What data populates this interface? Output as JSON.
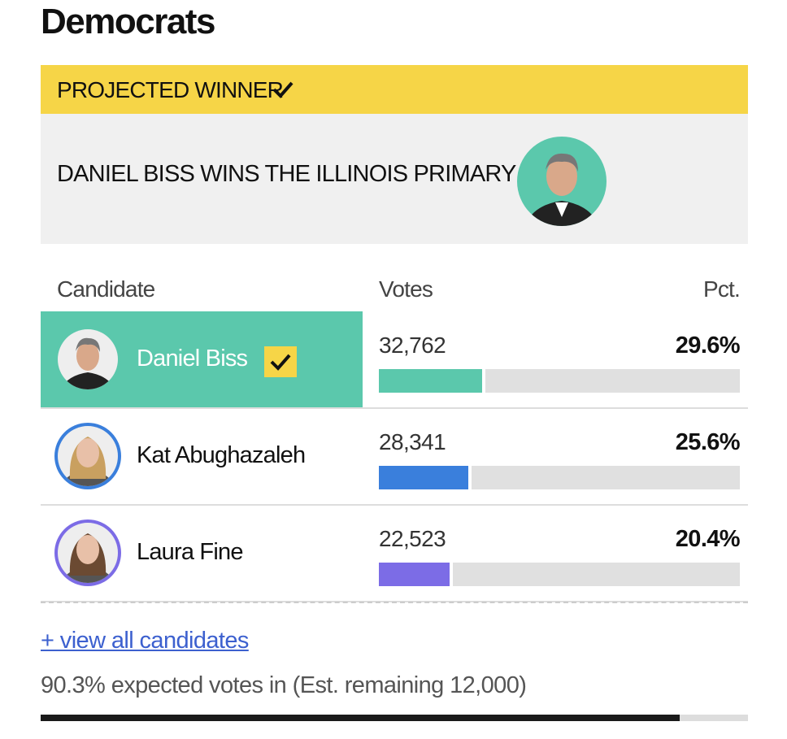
{
  "header": {
    "title": "Democrats"
  },
  "projection": {
    "label": "PROJECTED WINNER",
    "headline": "DANIEL BISS WINS THE ILLINOIS PRIMARY"
  },
  "table": {
    "columns": [
      "Candidate",
      "Votes",
      "Pct."
    ],
    "rows": [
      {
        "name": "Daniel Biss",
        "votes": "32,762",
        "pct": {
          "value": 29.6,
          "label": "29.6%"
        },
        "color": "#5bc8ac",
        "winner": true
      },
      {
        "name": "Kat Abughazaleh",
        "votes": "28,341",
        "pct": {
          "value": 25.6,
          "label": "25.6%"
        },
        "color": "#3a7fdc",
        "winner": false
      },
      {
        "name": "Laura Fine",
        "votes": "22,523",
        "pct": {
          "value": 20.4,
          "label": "20.4%"
        },
        "color": "#7c6ce6",
        "winner": false
      }
    ]
  },
  "link": "+ view all candidates",
  "reporting": {
    "pct": {
      "value": 90.3,
      "label": "90.3%"
    },
    "text": "expected votes in (Est. remaining 12,000)"
  }
}
